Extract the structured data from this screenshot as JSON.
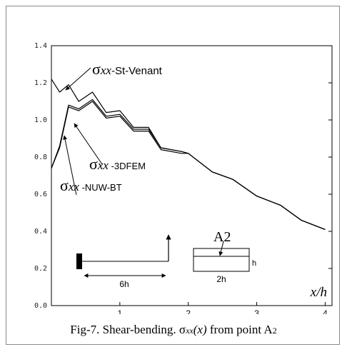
{
  "caption": {
    "prefix": "Fig-7. Shear-bending. ",
    "sigma": "σ",
    "sub": "xx",
    "func": "(x)",
    "middle": " from point A",
    "point_sub": "2"
  },
  "chart_data": {
    "type": "line",
    "xlabel": "x/h",
    "xlim": [
      0,
      4.1
    ],
    "ylim": [
      0,
      1.4
    ],
    "xticks": [
      "1",
      "2",
      "3",
      "4"
    ],
    "yticks": [
      "0.0",
      "0.2",
      "0.4",
      "0.6",
      "0.8",
      "1.0",
      "1.2",
      "1.4"
    ],
    "grid": false,
    "series": [
      {
        "name": "σxx-St-Venant",
        "x": [
          0,
          0.12,
          0.25,
          0.4,
          0.6,
          0.8,
          1.0,
          1.2,
          1.42,
          1.6,
          1.9,
          2.0,
          2.35,
          2.65,
          3.0,
          3.35,
          3.65,
          4.0
        ],
        "y": [
          1.22,
          1.15,
          1.19,
          1.1,
          1.15,
          1.04,
          1.05,
          0.96,
          0.96,
          0.85,
          0.83,
          0.82,
          0.72,
          0.68,
          0.59,
          0.54,
          0.46,
          0.41
        ]
      },
      {
        "name": "σxx-3DFEM",
        "x": [
          0,
          0.12,
          0.25,
          0.4,
          0.6,
          0.8,
          1.0,
          1.2,
          1.42,
          1.6,
          1.9,
          2.0,
          2.35,
          2.65,
          3.0,
          3.35,
          3.65,
          4.0
        ],
        "y": [
          0.74,
          0.86,
          1.08,
          1.06,
          1.11,
          1.02,
          1.03,
          0.95,
          0.95,
          0.85,
          0.83,
          0.82,
          0.72,
          0.68,
          0.59,
          0.54,
          0.46,
          0.41
        ]
      },
      {
        "name": "σxx-NUW-BT",
        "x": [
          0,
          0.12,
          0.25,
          0.4,
          0.6,
          0.8,
          1.0,
          1.2,
          1.42,
          1.6,
          1.9,
          2.0,
          2.35,
          2.65,
          3.0,
          3.35,
          3.65,
          4.0
        ],
        "y": [
          0.74,
          0.85,
          1.07,
          1.05,
          1.1,
          1.01,
          1.02,
          0.94,
          0.94,
          0.84,
          0.82,
          0.82,
          0.72,
          0.68,
          0.59,
          0.54,
          0.46,
          0.41
        ]
      }
    ],
    "annotations": {
      "st_venant": {
        "sym": "σ",
        "sub": "xx",
        "rest": "-St-Venant"
      },
      "fem": {
        "sym": "σ",
        "sub": "xx",
        "rest": " -3DFEM"
      },
      "nuw": {
        "sym": "σ",
        "sub": "xx",
        "rest": " -NUW-BT"
      }
    },
    "inset": {
      "span_label": "6h",
      "section_label": "A2",
      "height_label": "h",
      "width_label": "2h"
    }
  }
}
